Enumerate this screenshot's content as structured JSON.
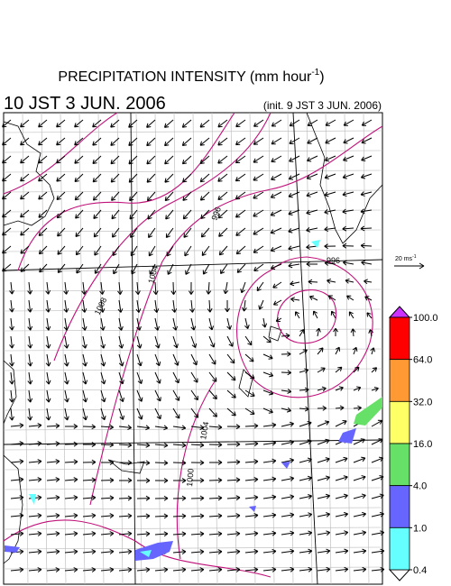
{
  "header": {
    "title": [
      "PRECIPITATION INTENSITY (mm hour",
      "-1",
      ")"
    ],
    "valid_time": "10 JST 3 JUN. 2006",
    "init_time": "(init. 9 JST 3 JUN. 2006)"
  },
  "wind_scale": [
    "20 ms",
    "-1"
  ],
  "contour_labels": [
    "996",
    "1004",
    "1008",
    "996",
    "1004",
    "1000"
  ],
  "colorbar": {
    "levels": [
      {
        "value": 100,
        "label": "100.0"
      },
      {
        "value": 64,
        "label": "64.0"
      },
      {
        "value": 32,
        "label": "32.0"
      },
      {
        "value": 16,
        "label": "16.0"
      },
      {
        "value": 4,
        "label": "4.0"
      },
      {
        "value": 1,
        "label": "1.0"
      },
      {
        "value": 0.4,
        "label": "0.4"
      }
    ],
    "colors": [
      "#ff0000",
      "#ff9933",
      "#ffff66",
      "#66e066",
      "#6666ff",
      "#66ffff"
    ],
    "over_color": "#cc33ff",
    "under_color": "#ffffff"
  }
}
